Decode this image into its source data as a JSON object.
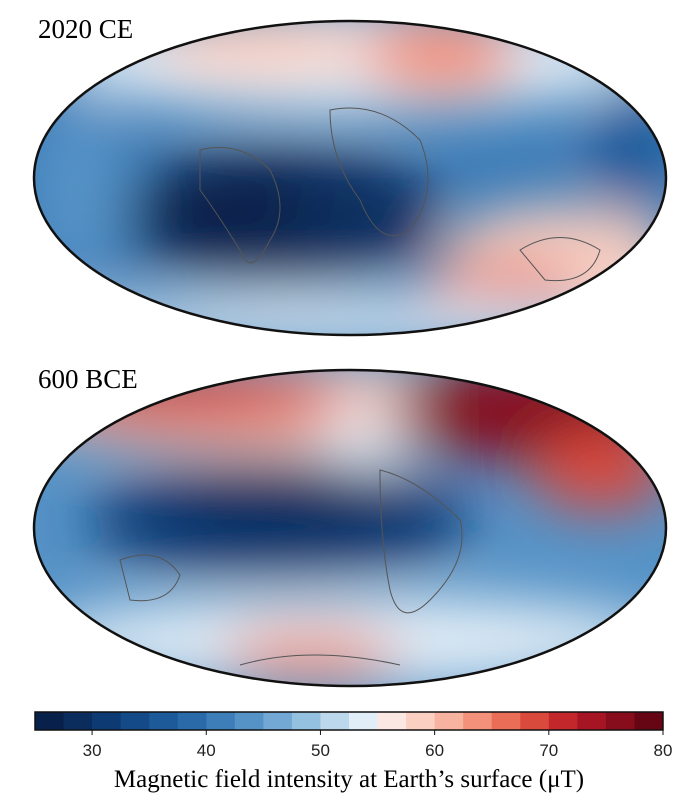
{
  "maps": [
    {
      "label": "2020 CE"
    },
    {
      "label": "600 BCE"
    }
  ],
  "colorbar": {
    "lim": [
      25,
      80
    ],
    "ticks": [
      30,
      40,
      50,
      60,
      70,
      80
    ],
    "colors": [
      "#08214a",
      "#0b2d5e",
      "#0e3a73",
      "#144a88",
      "#1c5a99",
      "#2a6aa8",
      "#3d7db8",
      "#5592c6",
      "#72a8d3",
      "#95c1e0",
      "#bcd8ec",
      "#e2eef7",
      "#fbe8e2",
      "#fbd0c2",
      "#f8b3a0",
      "#f3917a",
      "#ea6e57",
      "#d9493c",
      "#c3272b",
      "#a61523",
      "#870d1c",
      "#660514"
    ],
    "label": "Magnetic field intensity at Earth’s surface (μT)"
  }
}
